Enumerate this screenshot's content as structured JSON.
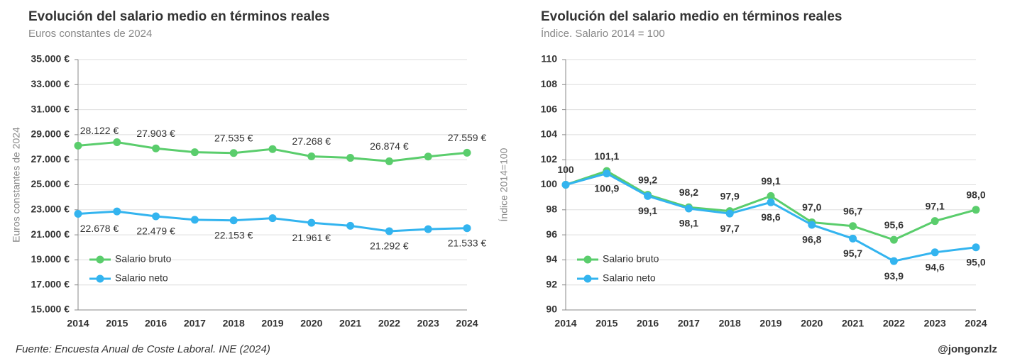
{
  "chart_data": [
    {
      "type": "line",
      "title": "Evolución del salario medio en términos reales",
      "subtitle": "Euros constantes de 2024",
      "ylabel": "Euros constantes de 2024",
      "categories": [
        "2014",
        "2015",
        "2016",
        "2017",
        "2018",
        "2019",
        "2020",
        "2021",
        "2022",
        "2023",
        "2024"
      ],
      "series": [
        {
          "name": "Salario bruto",
          "color": "#5acd6c",
          "values": [
            28122,
            28400,
            27903,
            27600,
            27535,
            27850,
            27268,
            27150,
            26874,
            27250,
            27559
          ],
          "value_labels": [
            "28.122 €",
            null,
            "27.903 €",
            null,
            "27.535 €",
            null,
            "27.268 €",
            null,
            "26.874 €",
            null,
            "27.559 €"
          ]
        },
        {
          "name": "Salario neto",
          "color": "#33b4ef",
          "values": [
            22678,
            22870,
            22479,
            22200,
            22153,
            22330,
            21961,
            21720,
            21292,
            21450,
            21533
          ],
          "value_labels": [
            "22.678 €",
            null,
            "22.479 €",
            null,
            "22.153 €",
            null,
            "21.961 €",
            null,
            "21.292 €",
            null,
            "21.533 €"
          ]
        }
      ],
      "ylim": [
        15000,
        35000
      ],
      "yticks": [
        {
          "value": 15000,
          "label": "15.000 €"
        },
        {
          "value": 17000,
          "label": "17.000 €"
        },
        {
          "value": 19000,
          "label": "19.000 €"
        },
        {
          "value": 21000,
          "label": "21.000 €"
        },
        {
          "value": 23000,
          "label": "23.000 €"
        },
        {
          "value": 25000,
          "label": "25.000 €"
        },
        {
          "value": 27000,
          "label": "27.000 €"
        },
        {
          "value": 29000,
          "label": "29.000 €"
        },
        {
          "value": 31000,
          "label": "31.000 €"
        },
        {
          "value": 33000,
          "label": "33.000 €"
        },
        {
          "value": 35000,
          "label": "35.000 €"
        }
      ],
      "grid": true,
      "legend": "lower left"
    },
    {
      "type": "line",
      "title": "Evolución del salario medio en términos reales",
      "subtitle": "Índice. Salario 2014 = 100",
      "ylabel": "Índice 2014=100",
      "categories": [
        "2014",
        "2015",
        "2016",
        "2017",
        "2018",
        "2019",
        "2020",
        "2021",
        "2022",
        "2023",
        "2024"
      ],
      "series": [
        {
          "name": "Salario bruto",
          "color": "#5acd6c",
          "values": [
            100,
            101.1,
            99.2,
            98.2,
            97.9,
            99.1,
            97.0,
            96.7,
            95.6,
            97.1,
            98.0
          ],
          "value_labels": [
            "100",
            "101,1",
            "99,2",
            "98,2",
            "97,9",
            "99,1",
            "97,0",
            "96,7",
            "95,6",
            "97,1",
            "98,0"
          ]
        },
        {
          "name": "Salario neto",
          "color": "#33b4ef",
          "values": [
            100,
            100.9,
            99.1,
            98.1,
            97.7,
            98.6,
            96.8,
            95.7,
            93.9,
            94.6,
            95.0
          ],
          "value_labels": [
            null,
            "100,9",
            "99,1",
            "98,1",
            "97,7",
            "98,6",
            "96,8",
            "95,7",
            "93,9",
            "94,6",
            "95,0"
          ]
        }
      ],
      "ylim": [
        90,
        110
      ],
      "yticks": [
        90,
        92,
        94,
        96,
        98,
        100,
        102,
        104,
        106,
        108,
        110
      ],
      "grid": true,
      "legend": "lower left"
    }
  ],
  "footer": {
    "source": "Fuente: Encuesta Anual de Coste Laboral. INE (2024)",
    "credit": "@jongonzlz"
  }
}
